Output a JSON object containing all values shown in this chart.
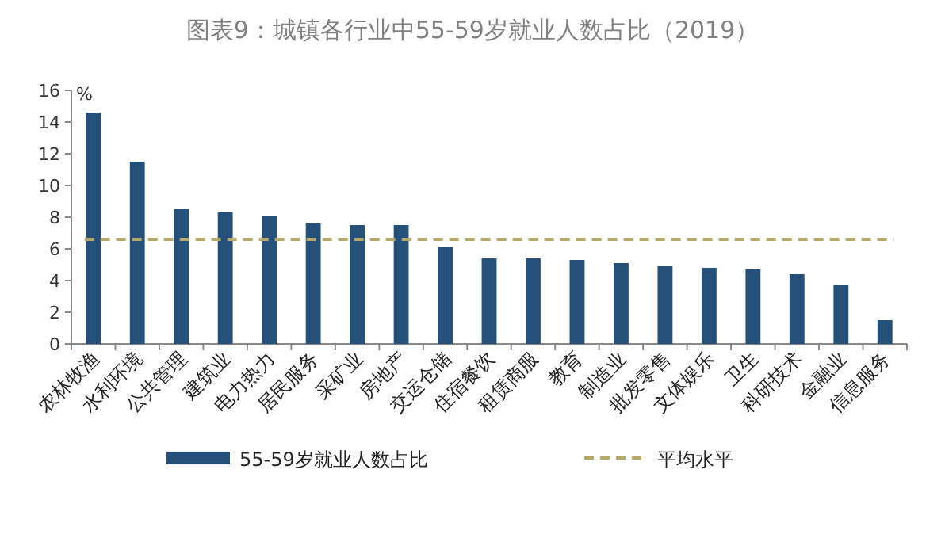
{
  "chart_data": {
    "type": "bar",
    "title": "图表9：城镇各行业中55-59岁就业人数占比（2019）",
    "ylabel": "%",
    "categories": [
      "农林牧渔",
      "水利环境",
      "公共管理",
      "建筑业",
      "电力热力",
      "居民服务",
      "采矿业",
      "房地产",
      "交运仓储",
      "住宿餐饮",
      "租赁商服",
      "教育",
      "制造业",
      "批发零售",
      "文体娱乐",
      "卫生",
      "科研技术",
      "金融业",
      "信息服务"
    ],
    "series": [
      {
        "name": "55-59岁就业人数占比",
        "color": "#24507a",
        "values": [
          14.6,
          11.5,
          8.5,
          8.3,
          8.1,
          7.6,
          7.5,
          7.5,
          6.1,
          5.4,
          5.4,
          5.3,
          5.1,
          4.9,
          4.8,
          4.7,
          4.4,
          3.7,
          1.5
        ]
      }
    ],
    "ylim": [
      0,
      16
    ],
    "yticks": [
      0,
      2,
      4,
      6,
      8,
      10,
      12,
      14,
      16
    ],
    "ref_lines": [
      {
        "axis": "y",
        "value": 6.6,
        "label": "平均水平",
        "color": "#b5a86b",
        "line_style": "dashed"
      }
    ],
    "legend": "bottom"
  }
}
